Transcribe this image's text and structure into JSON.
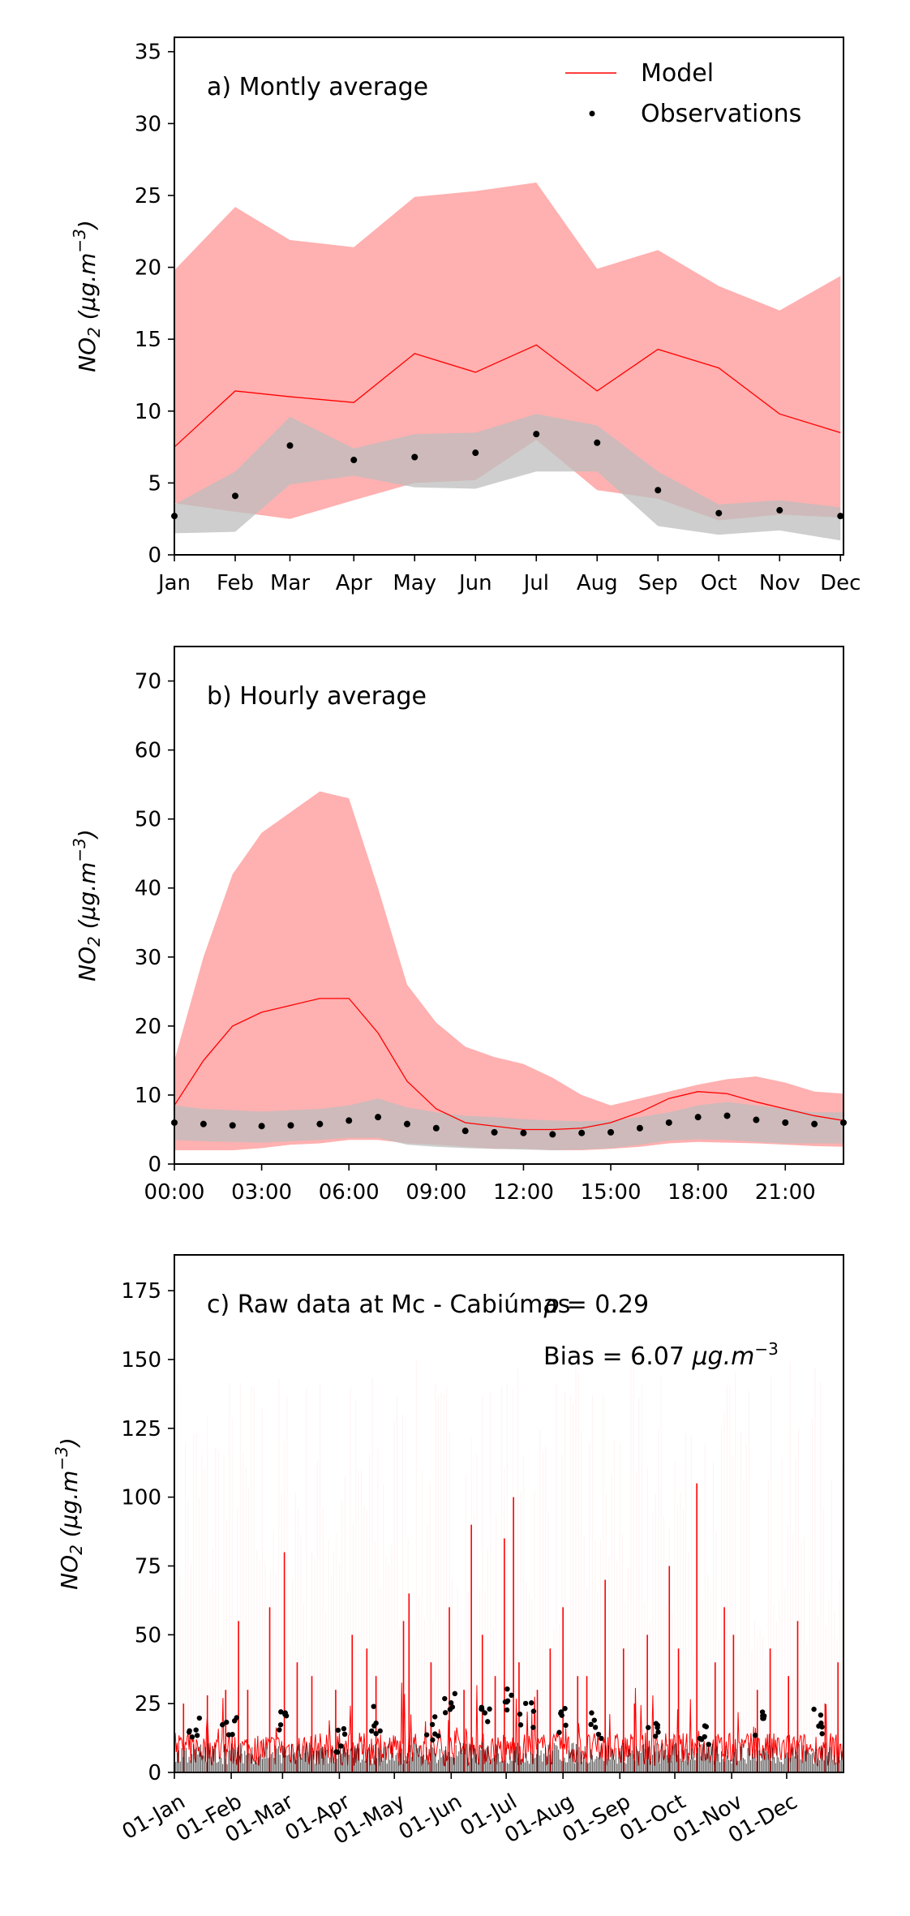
{
  "colors": {
    "model": "#ff0000",
    "model_band": "#ffb0b0",
    "obs": "#000000",
    "obs_band": "#bdbdbd"
  },
  "legend": {
    "model": "Model",
    "obs": "Observations"
  },
  "chart_data": [
    {
      "type": "line",
      "title": "a) Montly average",
      "ylabel": "NO2 (μg.m−3)",
      "ylabel_parts": {
        "base": "NO",
        "sub": "2",
        "unit": " (μg.m",
        "sup": "−3",
        "close": ")"
      },
      "categories": [
        "Jan",
        "Feb",
        "Mar",
        "Apr",
        "May",
        "Jun",
        "Jul",
        "Aug",
        "Sep",
        "Oct",
        "Nov",
        "Dec"
      ],
      "x": [
        0,
        1,
        1.9,
        2.95,
        3.95,
        4.95,
        5.95,
        6.95,
        7.95,
        8.95,
        9.95,
        10.95
      ],
      "ylim": [
        0,
        36
      ],
      "yticks": [
        "0",
        "5",
        "10",
        "15",
        "20",
        "25",
        "30",
        "35"
      ],
      "legend_position": "top-right",
      "series": [
        {
          "name": "Model",
          "kind": "line",
          "values": [
            7.5,
            11.4,
            11.0,
            10.6,
            14.0,
            12.7,
            14.6,
            11.4,
            14.3,
            13.0,
            9.8,
            8.5
          ]
        },
        {
          "name": "Observations",
          "kind": "scatter",
          "values": [
            2.7,
            4.1,
            7.6,
            6.6,
            6.8,
            7.1,
            8.4,
            7.8,
            4.5,
            2.9,
            3.1,
            2.7
          ]
        }
      ],
      "bands": [
        {
          "kind": "model",
          "upper": [
            19.8,
            24.2,
            21.9,
            21.4,
            24.9,
            25.3,
            25.9,
            19.9,
            21.2,
            18.7,
            17.0,
            19.4
          ],
          "lower": [
            3.6,
            3.0,
            2.5,
            3.8,
            5.0,
            5.2,
            8.0,
            4.5,
            3.9,
            2.4,
            2.8,
            2.6
          ]
        },
        {
          "kind": "obs",
          "upper": [
            3.5,
            5.8,
            9.6,
            7.4,
            8.4,
            8.5,
            9.8,
            9.0,
            5.8,
            3.5,
            3.8,
            3.3
          ],
          "lower": [
            1.5,
            1.6,
            4.9,
            5.5,
            4.7,
            4.6,
            5.8,
            5.8,
            2.0,
            1.4,
            1.7,
            1.0
          ]
        }
      ]
    },
    {
      "type": "line",
      "title": "b) Hourly average",
      "ylabel": "NO2 (μg.m−3)",
      "ylabel_parts": {
        "base": "NO",
        "sub": "2",
        "unit": " (μg.m",
        "sup": "−3",
        "close": ")"
      },
      "categories": [
        "00:00",
        "03:00",
        "06:00",
        "09:00",
        "12:00",
        "15:00",
        "18:00",
        "21:00"
      ],
      "tick_hours": [
        0,
        3,
        6,
        9,
        12,
        15,
        18,
        21
      ],
      "x": [
        0,
        1,
        2,
        3,
        4,
        5,
        6,
        7,
        8,
        9,
        10,
        11,
        12,
        13,
        14,
        15,
        16,
        17,
        18,
        19,
        20,
        21,
        22,
        23
      ],
      "ylim": [
        0,
        75
      ],
      "yticks": [
        "0",
        "10",
        "20",
        "30",
        "40",
        "50",
        "60",
        "70"
      ],
      "series": [
        {
          "name": "Model",
          "kind": "line",
          "values": [
            8.5,
            15,
            20,
            22,
            23,
            24,
            24,
            19,
            12,
            8,
            6,
            5.5,
            5,
            5,
            5.2,
            6,
            7.5,
            9.5,
            10.5,
            10.2,
            9,
            8,
            7,
            6.3
          ]
        },
        {
          "name": "Observations",
          "kind": "scatter",
          "values": [
            6,
            5.8,
            5.6,
            5.5,
            5.6,
            5.8,
            6.3,
            6.8,
            5.8,
            5.2,
            4.8,
            4.6,
            4.5,
            4.3,
            4.5,
            4.6,
            5.2,
            6,
            6.8,
            7,
            6.4,
            6,
            5.8,
            6
          ]
        }
      ],
      "bands": [
        {
          "kind": "model",
          "upper": [
            15,
            30,
            42,
            48,
            51,
            54,
            53,
            40,
            26,
            20.5,
            17,
            15.5,
            14.5,
            12.5,
            10,
            8.5,
            9.5,
            10.5,
            11.5,
            12.3,
            12.7,
            11.8,
            10.5,
            10.2
          ],
          "lower": [
            2,
            2,
            2,
            2.3,
            2.8,
            3,
            3.5,
            3.5,
            3,
            2.8,
            2.5,
            2.2,
            2.2,
            2,
            2,
            2.2,
            2.5,
            3,
            3.2,
            3.1,
            3,
            2.8,
            2.6,
            2.5
          ]
        },
        {
          "kind": "obs",
          "upper": [
            8.5,
            8,
            7.8,
            7.6,
            7.8,
            8,
            8.5,
            9.5,
            8.2,
            7.5,
            7,
            6.8,
            6.5,
            6.3,
            6.2,
            6.3,
            6.8,
            7.5,
            8.5,
            9,
            8.5,
            8,
            7.5,
            7.5
          ],
          "lower": [
            3.5,
            3.3,
            3.2,
            3.1,
            3.3,
            3.5,
            3.8,
            3.8,
            2.8,
            2.5,
            2.3,
            2.2,
            2.1,
            2,
            2.1,
            2.3,
            2.8,
            3.4,
            3.6,
            3.5,
            3.2,
            3,
            3,
            3
          ]
        }
      ]
    },
    {
      "type": "line",
      "title": "c) Raw data at Mc - Cabiúmas",
      "ylabel": "NO2 (μg.m−3)",
      "ylabel_parts": {
        "base": "NO",
        "sub": "2",
        "unit": " (μg.m",
        "sup": "−3",
        "close": ")"
      },
      "annotations": {
        "rho": {
          "prefix": "ρ = ",
          "value": "0.29"
        },
        "bias": {
          "prefix": "Bias = ",
          "value": "6.07",
          "unit": " μg.m",
          "sup": "−3"
        }
      },
      "categories": [
        "01-Jan",
        "01-Feb",
        "01-Mar",
        "01-Apr",
        "01-May",
        "01-Jun",
        "01-Jul",
        "01-Aug",
        "01-Sep",
        "01-Oct",
        "01-Nov",
        "01-Dec"
      ],
      "tick_days": [
        0,
        31,
        59,
        90,
        120,
        151,
        181,
        212,
        243,
        273,
        304,
        334
      ],
      "xlim_days": [
        0,
        365
      ],
      "ylim": [
        0,
        188
      ],
      "yticks": [
        "0",
        "25",
        "50",
        "75",
        "100",
        "125",
        "150",
        "175"
      ],
      "series": [
        {
          "name": "Model",
          "kind": "line",
          "baseline": 6,
          "spike_days": [
            5,
            18,
            28,
            35,
            40,
            52,
            60,
            67,
            75,
            88,
            97,
            105,
            110,
            125,
            128,
            140,
            150,
            158,
            162,
            168,
            175,
            180,
            185,
            188,
            198,
            205,
            212,
            220,
            225,
            235,
            245,
            251,
            258,
            270,
            275,
            285,
            295,
            300,
            305,
            318,
            325,
            335,
            340,
            355,
            362
          ],
          "spike_values": [
            25,
            28,
            30,
            55,
            30,
            60,
            80,
            40,
            35,
            30,
            50,
            45,
            35,
            55,
            65,
            40,
            60,
            30,
            90,
            50,
            35,
            85,
            100,
            40,
            30,
            45,
            60,
            35,
            35,
            70,
            45,
            25,
            50,
            75,
            45,
            105,
            40,
            60,
            50,
            30,
            45,
            35,
            55,
            25,
            40
          ]
        },
        {
          "name": "Observations",
          "kind": "scatter",
          "baseline": 3,
          "clusters": [
            {
              "day": 10,
              "value": 15
            },
            {
              "day": 30,
              "value": 18
            },
            {
              "day": 60,
              "value": 20
            },
            {
              "day": 90,
              "value": 12
            },
            {
              "day": 110,
              "value": 19
            },
            {
              "day": 140,
              "value": 16
            },
            {
              "day": 150,
              "value": 25
            },
            {
              "day": 170,
              "value": 20
            },
            {
              "day": 180,
              "value": 26
            },
            {
              "day": 192,
              "value": 21
            },
            {
              "day": 210,
              "value": 19
            },
            {
              "day": 230,
              "value": 17
            },
            {
              "day": 260,
              "value": 15
            },
            {
              "day": 290,
              "value": 13
            },
            {
              "day": 320,
              "value": 17
            },
            {
              "day": 350,
              "value": 19
            }
          ]
        }
      ]
    }
  ]
}
